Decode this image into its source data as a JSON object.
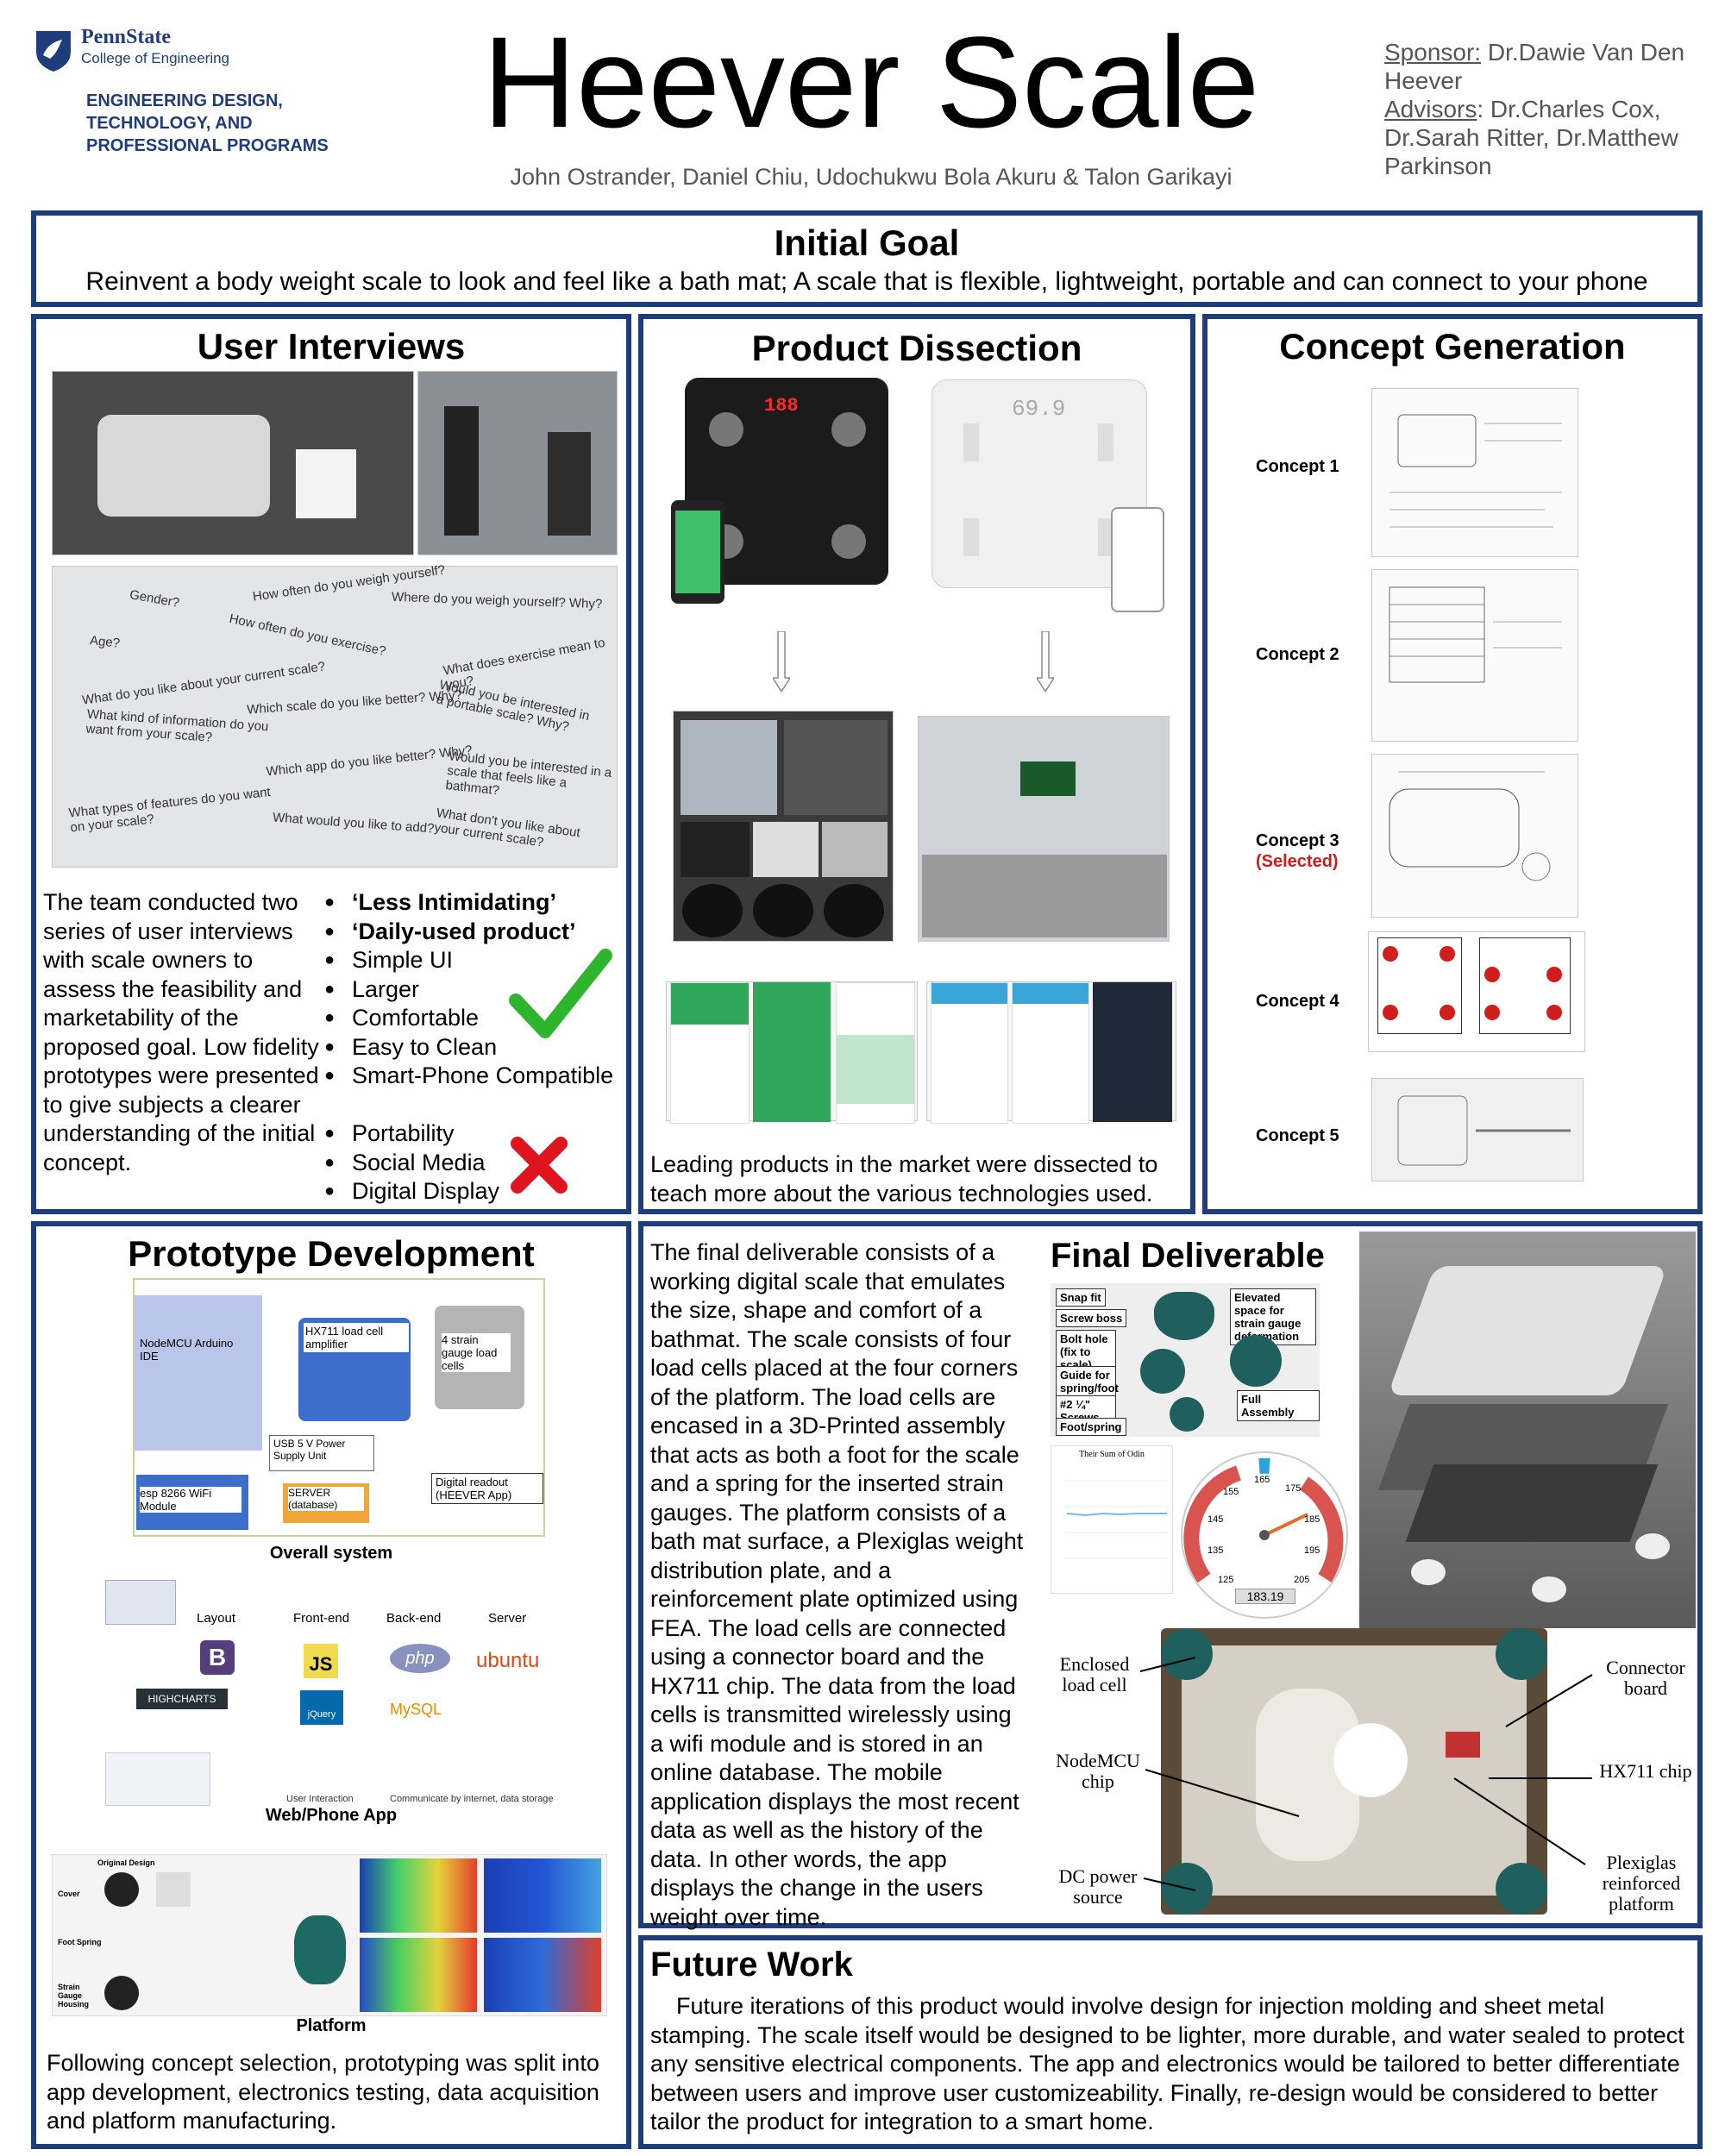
{
  "header": {
    "logo_line1": "PennState",
    "logo_line2": "College of Engineering",
    "dept_line1": "ENGINEERING DESIGN,",
    "dept_line2": "TECHNOLOGY, AND",
    "dept_line3": "PROFESSIONAL PROGRAMS",
    "title": "Heever Scale",
    "authors": "John Ostrander, Daniel Chiu, Udochukwu Bola Akuru & Talon Garikayi",
    "sponsor_label": "Sponsor:",
    "sponsor_value": " Dr.Dawie Van Den Heever",
    "advisors_label": "Advisors",
    "advisors_value": ": Dr.Charles Cox, Dr.Sarah Ritter, Dr.Matthew Parkinson"
  },
  "initial_goal": {
    "heading": "Initial Goal",
    "text": "Reinvent a body weight scale to look and feel like a bath mat; A scale that is flexible, lightweight, portable and can connect to your phone"
  },
  "user_interviews": {
    "heading": "User Interviews",
    "questions": [
      "Gender?",
      "How often do you weigh yourself?",
      "Where do you weigh yourself? Why?",
      "Age?",
      "How often do you exercise?",
      "What does exercise mean to you?",
      "What do you like about your current scale?",
      "Which scale do you like better? Why?",
      "Would you be interested in a portable scale? Why?",
      "What kind of information do you want from your scale?",
      "Which app do you like better? Why?",
      "Would you be interested in a scale that feels like a bathmat?",
      "What types of features do you want on your scale?",
      "What would you like to add?",
      "What don't you like about your current scale?"
    ],
    "text": "The team conducted two series of user interviews with scale owners to assess the feasibility and marketability of the proposed goal. Low fidelity prototypes were presented to give subjects a clearer understanding of the initial concept.",
    "positive": [
      "‘Less Intimidating’",
      "‘Daily-used product’",
      "Simple UI",
      "Larger",
      "Comfortable",
      "Easy to Clean",
      "Smart-Phone Compatible"
    ],
    "negative": [
      "Portability",
      "Social Media",
      "Digital Display"
    ],
    "check_icon": "check-icon",
    "cross_icon": "cross-icon",
    "check_color": "#2db52d",
    "cross_color": "#e0141e"
  },
  "product_dissection": {
    "heading": "Product Dissection",
    "scale_display": "69.9",
    "scale_display_2": "188",
    "text": "Leading products in the market were dissected to teach more about the various technologies used."
  },
  "concept_generation": {
    "heading": "Concept Generation",
    "concepts": [
      {
        "label": "Concept 1",
        "note": ""
      },
      {
        "label": "Concept 2",
        "note": ""
      },
      {
        "label": "Concept 3",
        "note": "(Selected)"
      },
      {
        "label": "Concept 4",
        "note": ""
      },
      {
        "label": "Concept 5",
        "note": ""
      }
    ],
    "selected_color": "#d11a1a"
  },
  "prototype_development": {
    "heading": "Prototype Development",
    "diagram": {
      "node_mcu": "NodeMCU Arduino IDE",
      "hx711": "HX711 load cell amplifier",
      "load_cells": "4 strain gauge load cells",
      "usb": "USB 5 V Power Supply Unit",
      "esp": "esp 8266 WiFi Module",
      "server": "SERVER (database)",
      "readout": "Digital readout (HEEVER App)"
    },
    "caption_system": "Overall system",
    "web": {
      "layout": "Layout",
      "frontend": "Front-end",
      "backend": "Back-end",
      "server": "Server",
      "bootstrap": "B",
      "js": "JS",
      "jquery": "jQuery",
      "php": "php",
      "mysql": "MySQL",
      "ubuntu": "ubuntu",
      "highcharts": "HIGHCHARTS",
      "user_interaction": "User Interaction",
      "communicate": "Communicate by internet, data storage"
    },
    "caption_web": "Web/Phone App",
    "platform": {
      "original": "Original Design",
      "cover": "Cover",
      "foot_spring": "Foot Spring",
      "strain": "Strain Gauge Housing"
    },
    "caption_platform": "Platform",
    "text": "Following concept selection, prototyping was split into app development, electronics testing, data acquisition and platform manufacturing."
  },
  "final_deliverable": {
    "heading": "Final Deliverable",
    "text": "The final deliverable consists of a working digital scale that emulates the size, shape and comfort of a bathmat. The scale consists of four load cells placed at the four corners of the platform. The load cells are encased in a 3D-Printed assembly that acts as both a foot for the scale and a spring for the inserted strain gauges. The platform consists of a bath mat surface, a Plexiglas weight distribution plate, and a reinforcement plate optimized using FEA. The load cells are connected using a connector board and the HX711 chip. The data from the load cells is transmitted wirelessly using a wifi module and is stored in an online database. The mobile application displays the most recent data as well as the history of the data. In other words, the app displays the change in the users weight over time.",
    "part_labels": [
      "Snap fit",
      "Screw boss",
      "Bolt hole (fix to scale)",
      "Guide for spring/foot",
      "#2 ¼\" Screws",
      "Foot/spring",
      "Elevated space for strain gauge deformation",
      "Full Assembly"
    ],
    "chart_title": "Their Sum of Odin",
    "gauge_value": "183.19",
    "gauge_ticks": [
      "125",
      "135",
      "145",
      "155",
      "165",
      "175",
      "185",
      "195",
      "205"
    ],
    "photo_labels": {
      "enclosed": "Enclosed load cell",
      "nodemcu": "NodeMCU chip",
      "dc": "DC power source",
      "connector": "Connector board",
      "hx711": "HX711 chip",
      "plexiglas": "Plexiglas reinforced platform"
    }
  },
  "future_work": {
    "heading": "Future Work",
    "text": "Future iterations of this product would involve design for injection molding and sheet metal stamping. The scale itself would be designed to be lighter, more durable, and water sealed to protect any sensitive electrical components. The app and electronics would be tailored to better differentiate between users and improve user customizeability. Finally, re-design would be considered to better tailor the product for integration to a smart home."
  }
}
